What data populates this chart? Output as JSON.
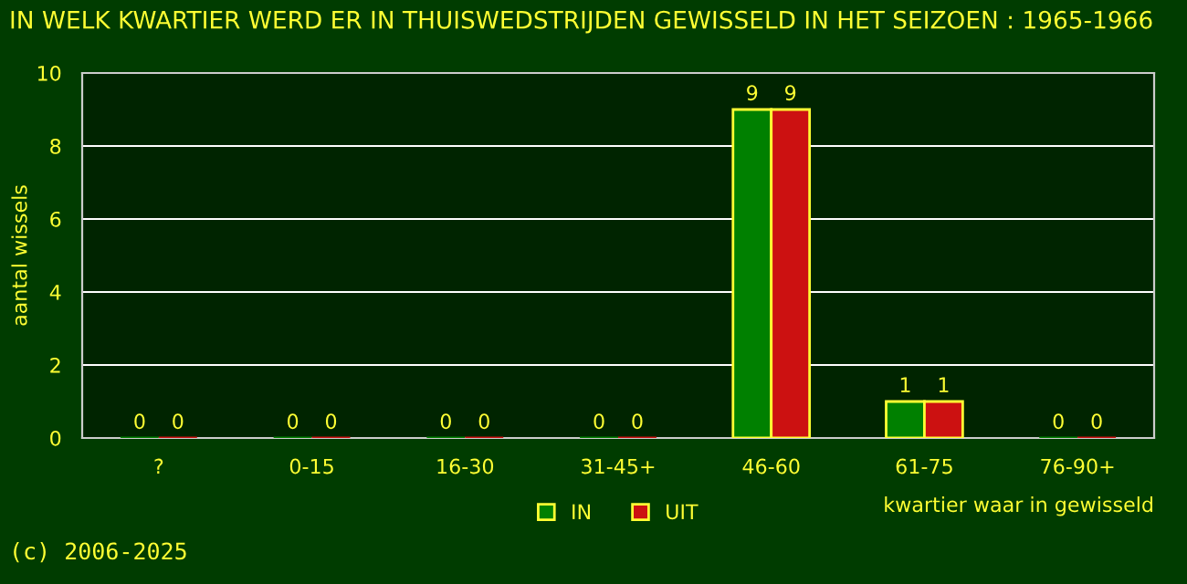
{
  "chart_data": {
    "type": "bar",
    "title": "IN WELK KWARTIER WERD ER IN THUISWEDSTRIJDEN GEWISSELD IN HET SEIZOEN : 1965-1966",
    "ylabel": "aantal wissels",
    "xlabel": "kwartier waar in gewisseld",
    "categories": [
      "?",
      "0-15",
      "16-30",
      "31-45+",
      "46-60",
      "61-75",
      "76-90+"
    ],
    "series": [
      {
        "name": "IN",
        "color": "#008000",
        "values": [
          0,
          0,
          0,
          0,
          9,
          1,
          0
        ]
      },
      {
        "name": "UIT",
        "color": "#cc1111",
        "values": [
          0,
          0,
          0,
          0,
          9,
          1,
          0
        ]
      }
    ],
    "ylim": [
      0,
      10
    ],
    "yticks": [
      0,
      2,
      4,
      6,
      8,
      10
    ],
    "grid": "y",
    "legend": "bottom",
    "data_labels": true,
    "annotations": [
      "(c) 2006-2025"
    ]
  }
}
